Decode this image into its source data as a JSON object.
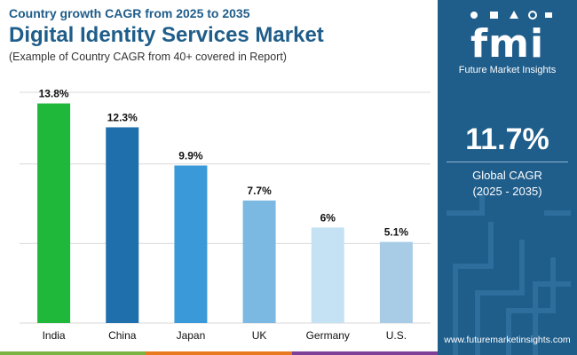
{
  "header": {
    "subtitle": "Country growth CAGR from 2025 to 2035",
    "title": "Digital Identity Services Market",
    "note": "(Example of Country CAGR from 40+ covered in Report)"
  },
  "chart_data": {
    "type": "bar",
    "categories": [
      "India",
      "China",
      "Japan",
      "UK",
      "Germany",
      "U.S."
    ],
    "values": [
      13.8,
      12.3,
      9.9,
      7.7,
      6,
      5.1
    ],
    "labels": [
      "13.8%",
      "12.3%",
      "9.9%",
      "7.7%",
      "6%",
      "5.1%"
    ],
    "colors": [
      "#1fb83a",
      "#1f6fad",
      "#3a9ad9",
      "#7bb8e2",
      "#c4e2f3",
      "#a9cce6"
    ],
    "ylim": [
      0,
      14.5
    ],
    "gridlines": [
      0,
      5,
      10
    ],
    "title": "",
    "xlabel": "",
    "ylabel": ""
  },
  "panel": {
    "logo_text": "fmi",
    "logo_subtitle": "Future Market Insights",
    "global_cagr_value": "11.7%",
    "global_cagr_label": "Global CAGR",
    "global_cagr_period": "(2025 - 2035)",
    "website": "www.futuremarketinsights.com",
    "background_color": "#1f5d8a"
  },
  "bottom_strip_colors": [
    "#7ab342",
    "#e8791e",
    "#7e3f98"
  ]
}
